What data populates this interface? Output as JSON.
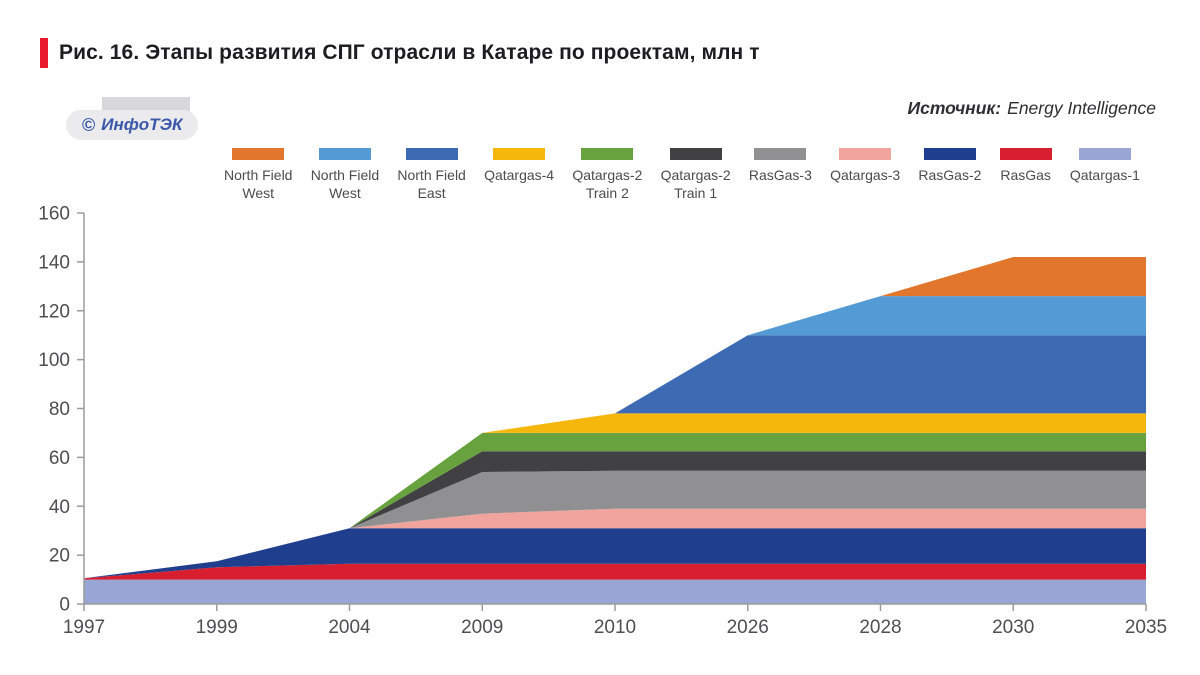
{
  "header": {
    "title": "Рис. 16. Этапы развития СПГ отрасли в Катаре по проектам, млн т",
    "accent_color": "#e8192c"
  },
  "logo": {
    "copyright": "©",
    "text": "ИнфоТЭК"
  },
  "source": {
    "label": "Источник:",
    "value": "Energy Intelligence"
  },
  "chart_data": {
    "type": "area",
    "stacked": true,
    "title": "Этапы развития СПГ отрасли в Катаре по проектам, млн т",
    "xlabel": "",
    "ylabel": "",
    "ylim": [
      0,
      160
    ],
    "ytick_step": 20,
    "grid": false,
    "legend_position": "top",
    "legend_order": "top-of-stack-first",
    "axis_color": "#9b9b9b",
    "label_color": "#4f4f51",
    "categories": [
      "1997",
      "1999",
      "2004",
      "2009",
      "2010",
      "2026",
      "2028",
      "2030",
      "2035"
    ],
    "series": [
      {
        "id": "qatargas-1",
        "label": "Qatargas-1",
        "color": "#99a5d3",
        "values": [
          10,
          10,
          10,
          10,
          10,
          10,
          10,
          10,
          10
        ]
      },
      {
        "id": "rasgas",
        "label": "RasGas",
        "color": "#d71f2f",
        "values": [
          0.5,
          5,
          6.5,
          6.5,
          6.5,
          6.5,
          6.5,
          6.5,
          6.5
        ]
      },
      {
        "id": "rasgas-2",
        "label": "RasGas-2",
        "color": "#1f3e8d",
        "values": [
          0,
          2.5,
          14.5,
          14.5,
          14.5,
          14.5,
          14.5,
          14.5,
          14.5
        ]
      },
      {
        "id": "qatargas-3",
        "label": "Qatargas-3",
        "color": "#f0a49d",
        "values": [
          0,
          0,
          0,
          6,
          8,
          8,
          8,
          8,
          8
        ]
      },
      {
        "id": "rasgas-3",
        "label": "RasGas-3",
        "color": "#909092",
        "values": [
          0,
          0,
          0,
          17,
          15.5,
          15.5,
          15.5,
          15.5,
          15.5
        ]
      },
      {
        "id": "qatargas-2-train-1",
        "label": "Qatargas-2\nTrain 1",
        "color": "#414143",
        "values": [
          0,
          0,
          0,
          8.5,
          8,
          8,
          8,
          8,
          8
        ]
      },
      {
        "id": "qatargas-2-train-2",
        "label": "Qatargas-2\nTrain 2",
        "color": "#68a23e",
        "values": [
          0,
          0,
          0,
          7.5,
          7.5,
          7.5,
          7.5,
          7.5,
          7.5
        ]
      },
      {
        "id": "qatargas-4",
        "label": "Qatargas-4",
        "color": "#f6b70d",
        "values": [
          0,
          0,
          0,
          0,
          8,
          8,
          8,
          8,
          8
        ]
      },
      {
        "id": "north-field-east",
        "label": "North Field\nEast",
        "color": "#3c6bb3",
        "values": [
          0,
          0,
          0,
          0,
          0,
          32,
          32,
          32,
          32
        ]
      },
      {
        "id": "north-field-west-blue",
        "label": "North Field\nWest",
        "color": "#549bd5",
        "values": [
          0,
          0,
          0,
          0,
          0,
          0,
          16,
          16,
          16
        ]
      },
      {
        "id": "north-field-west-orange",
        "label": "North Field\nWest",
        "color": "#e2762c",
        "values": [
          0,
          0,
          0,
          0,
          0,
          0,
          0,
          16,
          16
        ]
      }
    ]
  }
}
